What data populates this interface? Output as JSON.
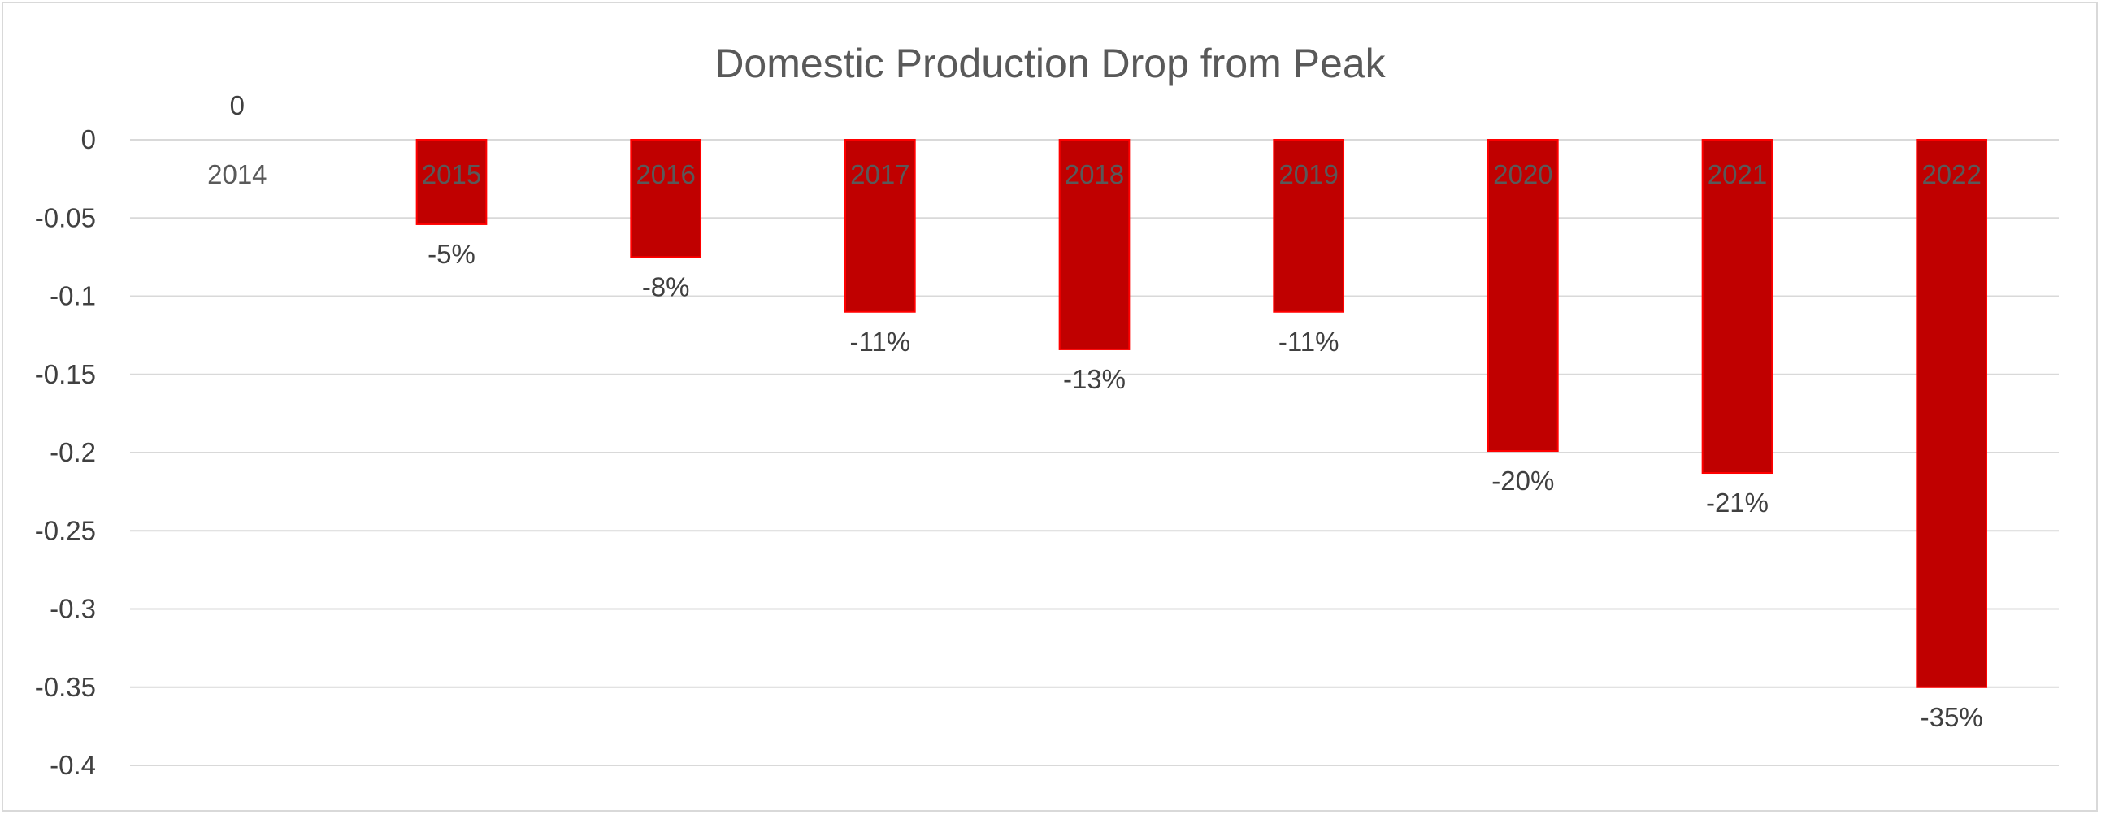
{
  "chart_data": {
    "type": "bar",
    "title": "Domestic Production Drop from Peak",
    "xlabel": "",
    "ylabel": "",
    "categories": [
      "2014",
      "2015",
      "2016",
      "2017",
      "2018",
      "2019",
      "2020",
      "2021",
      "2022"
    ],
    "values": [
      0,
      -0.054,
      -0.075,
      -0.11,
      -0.134,
      -0.11,
      -0.199,
      -0.213,
      -0.35
    ],
    "data_labels": [
      "0",
      "-5%",
      "-8%",
      "-11%",
      "-13%",
      "-11%",
      "-20%",
      "-21%",
      "-35%"
    ],
    "yticks": [
      "0",
      "-0.05",
      "-0.1",
      "-0.15",
      "-0.2",
      "-0.25",
      "-0.3",
      "-0.35",
      "-0.4"
    ],
    "ylim": [
      -0.4,
      0
    ],
    "grid": true,
    "legend": "none",
    "colors": {
      "bar": "#c00000",
      "bar_edge": "#ff0000"
    }
  }
}
